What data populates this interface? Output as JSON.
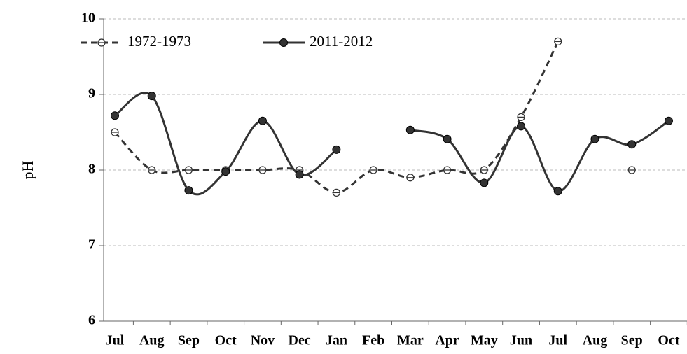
{
  "chart_data": {
    "type": "line",
    "y_label": "pH",
    "categories": [
      "Jul",
      "Aug",
      "Sep",
      "Oct",
      "Nov",
      "Dec",
      "Jan",
      "Feb",
      "Mar",
      "Apr",
      "May",
      "Jun",
      "Jul",
      "Aug",
      "Sep",
      "Oct"
    ],
    "series": [
      {
        "name": "1972-1973",
        "color": "#333333",
        "dashed": true,
        "marker": "open",
        "values": [
          8.5,
          8.0,
          8.0,
          8.0,
          8.0,
          8.0,
          7.7,
          8.0,
          7.9,
          8.0,
          8.0,
          8.7,
          9.7,
          null,
          8.0,
          null
        ]
      },
      {
        "name": "2011-2012",
        "color": "#333333",
        "dashed": false,
        "marker": "filled",
        "values": [
          8.72,
          8.98,
          7.73,
          7.98,
          8.65,
          7.94,
          8.27,
          null,
          8.53,
          8.41,
          7.83,
          8.58,
          7.72,
          8.41,
          8.34,
          8.65
        ]
      }
    ],
    "ylim": [
      6,
      10
    ],
    "yticks": [
      6,
      7,
      8,
      9,
      10
    ],
    "grid": true,
    "legend": "top-left"
  }
}
